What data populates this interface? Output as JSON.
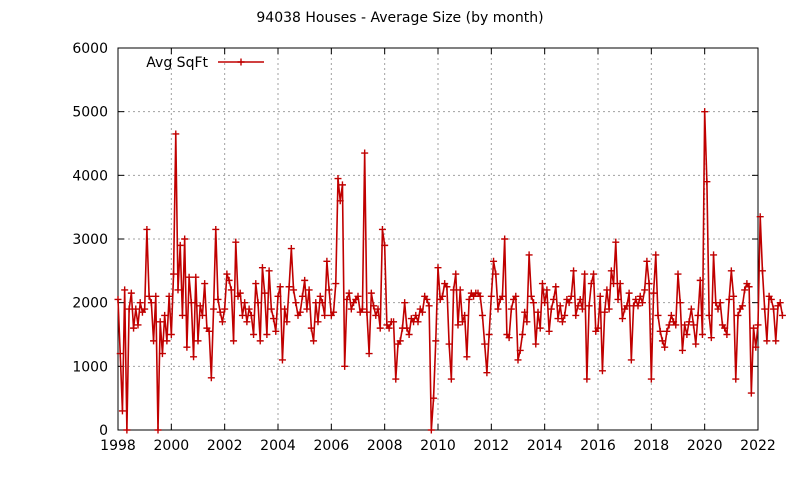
{
  "chart_data": {
    "type": "line",
    "title": "94038 Houses - Average Size (by month)",
    "xlabel": "",
    "ylabel": "",
    "xlim": [
      1998,
      2022
    ],
    "ylim": [
      0,
      6000
    ],
    "x_ticks": [
      1998,
      2000,
      2002,
      2004,
      2006,
      2008,
      2010,
      2012,
      2014,
      2016,
      2018,
      2020,
      2022
    ],
    "y_ticks": [
      0,
      1000,
      2000,
      3000,
      4000,
      5000,
      6000
    ],
    "grid": true,
    "legend_position": "top-left",
    "series": [
      {
        "name": "Avg SqFt",
        "color": "#c00000",
        "marker": "plus",
        "x_start_year": 1998,
        "x_start_month": 1,
        "step": "month",
        "values": [
          2050,
          1200,
          300,
          2200,
          0,
          1900,
          2150,
          1600,
          1900,
          1650,
          2000,
          1850,
          1900,
          3150,
          2100,
          2000,
          1400,
          2100,
          0,
          1700,
          1200,
          1800,
          1400,
          2100,
          1500,
          2450,
          4650,
          2200,
          2900,
          1800,
          3000,
          1300,
          2400,
          2000,
          1150,
          2400,
          1400,
          1950,
          1800,
          2300,
          1600,
          1550,
          820,
          1900,
          3150,
          2050,
          1850,
          1700,
          1900,
          2450,
          2350,
          2200,
          1400,
          2950,
          2100,
          2150,
          1800,
          2000,
          1700,
          1900,
          1800,
          1500,
          2300,
          2000,
          1400,
          2550,
          2150,
          1500,
          2500,
          1900,
          1750,
          1550,
          2100,
          2250,
          1100,
          1900,
          1700,
          2250,
          2850,
          2200,
          2000,
          1800,
          1850,
          2100,
          2350,
          1900,
          2200,
          1600,
          1400,
          2000,
          1700,
          2100,
          2000,
          1800,
          2650,
          2200,
          1800,
          1850,
          2300,
          3950,
          3600,
          3850,
          1000,
          2050,
          2150,
          1900,
          2000,
          2050,
          2100,
          1850,
          1900,
          4350,
          1850,
          1200,
          2150,
          1950,
          1800,
          1900,
          1600,
          3150,
          2900,
          1650,
          1600,
          1700,
          1700,
          800,
          1350,
          1400,
          1600,
          2000,
          1600,
          1500,
          1750,
          1700,
          1800,
          1700,
          1900,
          1850,
          2100,
          2050,
          1950,
          0,
          500,
          1400,
          2550,
          2050,
          2100,
          2300,
          2250,
          1350,
          800,
          2200,
          2450,
          1650,
          2200,
          1700,
          1800,
          1150,
          2050,
          2150,
          2100,
          2150,
          2150,
          2100,
          1800,
          1350,
          900,
          1500,
          2100,
          2650,
          2450,
          1900,
          2050,
          2100,
          3000,
          1500,
          1450,
          1900,
          2050,
          2100,
          1100,
          1250,
          1500,
          1850,
          1700,
          2750,
          2100,
          2000,
          1350,
          1850,
          1600,
          2300,
          2000,
          2200,
          1550,
          1900,
          2050,
          2250,
          1750,
          1950,
          1700,
          1800,
          2050,
          2000,
          2100,
          2500,
          1800,
          1950,
          2050,
          1900,
          2450,
          800,
          1950,
          2300,
          2450,
          1550,
          1600,
          2100,
          930,
          1850,
          2200,
          1900,
          2500,
          2300,
          2950,
          2050,
          2300,
          1750,
          1900,
          1950,
          2150,
          1100,
          1950,
          2050,
          1950,
          2100,
          2000,
          2200,
          2650,
          2300,
          800,
          2150,
          2750,
          1800,
          1550,
          1400,
          1300,
          1550,
          1650,
          1800,
          1700,
          1650,
          2450,
          2000,
          1250,
          1650,
          1500,
          1700,
          1900,
          1650,
          1350,
          1800,
          2350,
          1500,
          5000,
          3900,
          1800,
          1450,
          2750,
          2000,
          1900,
          2000,
          1650,
          1600,
          1500,
          2050,
          2500,
          2100,
          800,
          1800,
          1900,
          1950,
          2200,
          2300,
          2250,
          580,
          1600,
          1300,
          1650,
          3350,
          2500,
          1900,
          1400,
          2100,
          2050,
          1900,
          1400,
          1950,
          2000,
          1800
        ]
      }
    ]
  }
}
